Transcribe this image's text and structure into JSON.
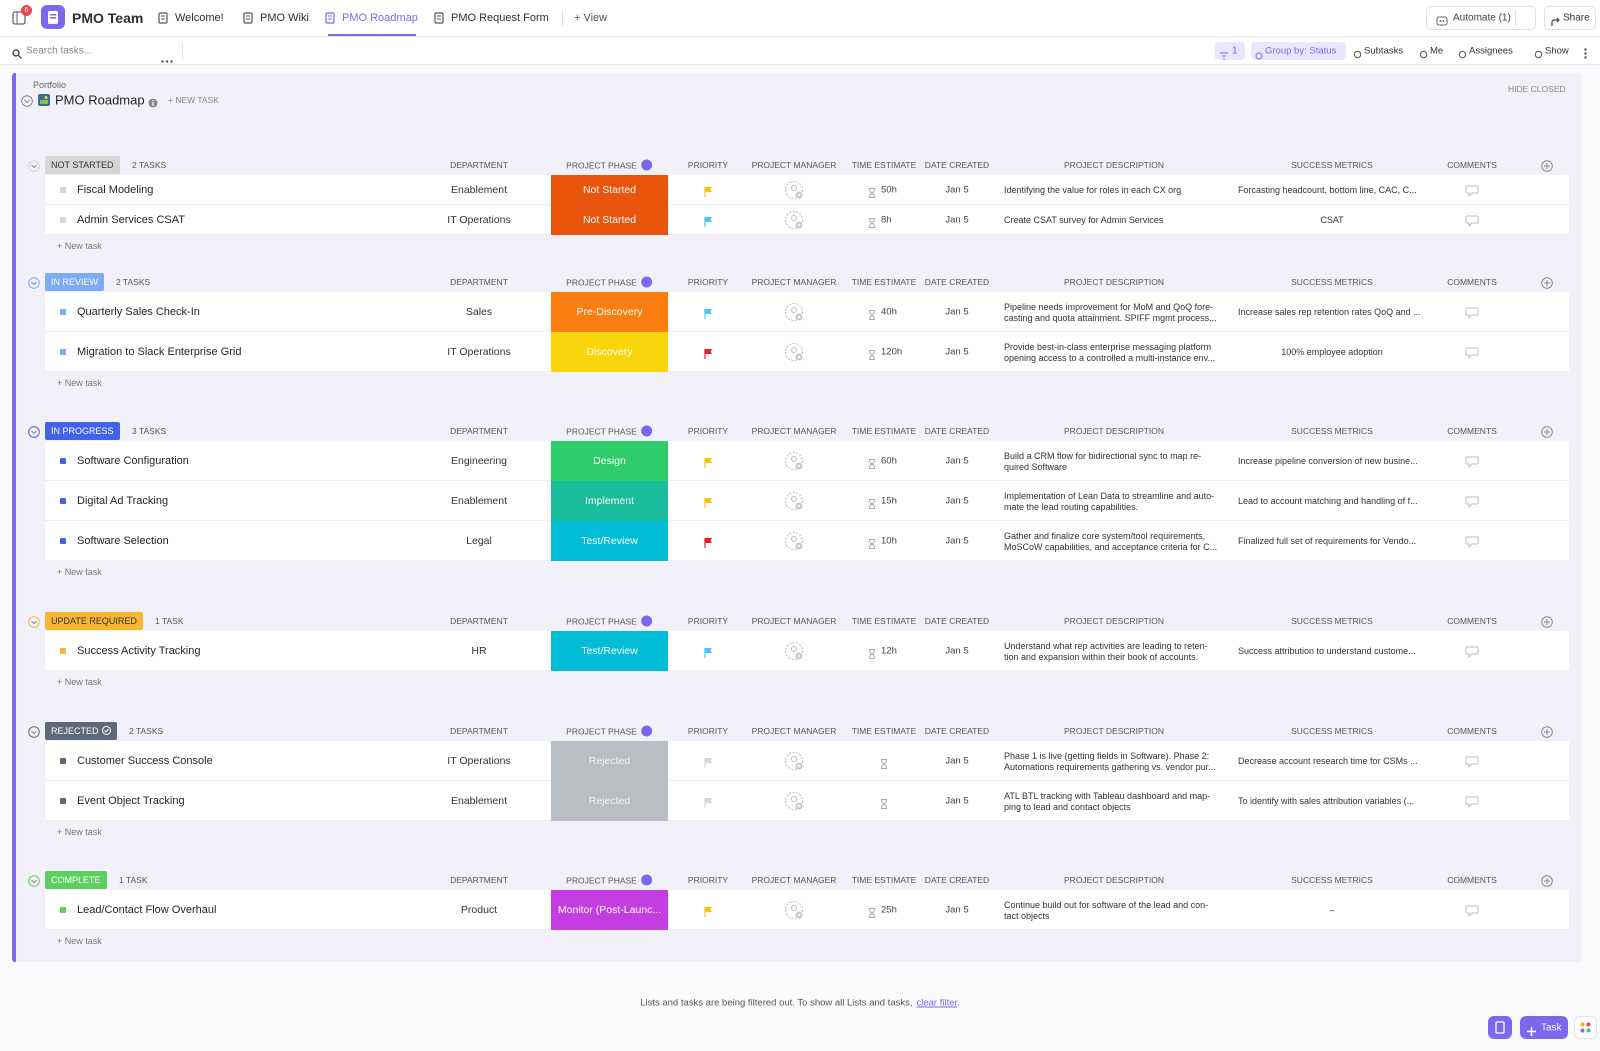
{
  "header": {
    "badge": "6",
    "workspace": "PMO Team",
    "tabs": [
      "Welcome!",
      "PMO Wiki",
      "PMO Roadmap",
      "PMO Request Form"
    ],
    "active_tab": 2,
    "add_view": "+ View",
    "automate": "Automate (1)",
    "share": "Share"
  },
  "toolbar": {
    "search": "Search tasks...",
    "filter_count": "1",
    "group_by": "Group by: Status",
    "subtasks": "Subtasks",
    "me": "Me",
    "assignees": "Assignees",
    "show": "Show"
  },
  "list": {
    "breadcrumb": "Portfolio",
    "title": "PMO Roadmap",
    "new_task": "+ NEW TASK",
    "hide_closed": "HIDE CLOSED",
    "add_task": "+ New task",
    "columns": [
      "DEPARTMENT",
      "PROJECT PHASE",
      "PRIORITY",
      "PROJECT MANAGER",
      "TIME ESTIMATE",
      "DATE CREATED",
      "PROJECT DESCRIPTION",
      "SUCCESS METRICS",
      "COMMENTS"
    ],
    "groups": [
      {
        "status": "NOT STARTED",
        "count": "2 TASKS",
        "color": "#d6d6d6",
        "text_color": "#333333",
        "tasks": [
          {
            "name": "Fiscal Modeling",
            "department": "Enablement",
            "phase": "Not Started",
            "phase_color": "#e8540c",
            "flag_color": "#f9c513",
            "time": "50h",
            "date": "Jan 5",
            "description": [
              "Identifying the value for roles in each CX org"
            ],
            "metrics": "Forcasting headcount, bottom line, CAC, C..."
          },
          {
            "name": "Admin Services CSAT",
            "department": "IT Operations",
            "phase": "Not Started",
            "phase_color": "#e8540c",
            "flag_color": "#4fc3f7",
            "time": "8h",
            "date": "Jan 5",
            "description": [
              "Create CSAT survey for Admin Services"
            ],
            "metrics": "CSAT"
          }
        ]
      },
      {
        "status": "IN REVIEW",
        "count": "2 TASKS",
        "color": "#7baaf7",
        "text_color": "#ffffff",
        "tasks": [
          {
            "name": "Quarterly Sales Check-In",
            "department": "Sales",
            "phase": "Pre-Discovery",
            "phase_color": "#fb7d0f",
            "flag_color": "#4fc3f7",
            "time": "40h",
            "date": "Jan 5",
            "description": [
              "Pipeline needs improvement for MoM and QoQ fore-",
              "casting and quota attainment.  SPIFF mgmt process..."
            ],
            "metrics": "Increase sales rep retention rates QoQ and ..."
          },
          {
            "name": "Migration to Slack Enterprise Grid",
            "department": "IT Operations",
            "phase": "Discovery",
            "phase_color": "#f7d50a",
            "flag_color": "#e62020",
            "time": "120h",
            "date": "Jan 5",
            "description": [
              "Provide best-in-class enterprise messaging platform",
              "opening access to a controlled a multi-instance env..."
            ],
            "metrics": "100% employee adoption"
          }
        ]
      },
      {
        "status": "IN PROGRESS",
        "count": "3 TASKS",
        "color": "#4262ea",
        "text_color": "#ffffff",
        "tasks": [
          {
            "name": "Software Configuration",
            "department": "Engineering",
            "phase": "Design",
            "phase_color": "#2ecc6b",
            "flag_color": "#f9c513",
            "time": "60h",
            "date": "Jan 5",
            "description": [
              "Build a CRM flow for bidirectional sync to map re-",
              "quired Software"
            ],
            "metrics": "Increase pipeline conversion of new busine..."
          },
          {
            "name": "Digital Ad Tracking",
            "department": "Enablement",
            "phase": "Implement",
            "phase_color": "#1bbc9b",
            "flag_color": "#f9c513",
            "time": "15h",
            "date": "Jan 5",
            "description": [
              "Implementation of Lean Data to streamline and auto-",
              "mate the lead routing capabilities."
            ],
            "metrics": "Lead to account matching and handling of f..."
          },
          {
            "name": "Software Selection",
            "department": "Legal",
            "phase": "Test/Review",
            "phase_color": "#00bcd4",
            "flag_color": "#e62020",
            "time": "10h",
            "date": "Jan 5",
            "description": [
              "Gather and finalize core system/tool requirements,",
              "MoSCoW capabilities, and acceptance criteria for C..."
            ],
            "metrics": "Finalized full set of requirements for Vendo..."
          }
        ]
      },
      {
        "status": "UPDATE REQUIRED",
        "count": "1 TASK",
        "color": "#f8b731",
        "text_color": "#333333",
        "tasks": [
          {
            "name": "Success Activity Tracking",
            "department": "HR",
            "phase": "Test/Review",
            "phase_color": "#00bcd4",
            "flag_color": "#4fc3f7",
            "time": "12h",
            "date": "Jan 5",
            "description": [
              " Understand what rep activities are leading to reten-",
              "tion and expansion within their book of accounts."
            ],
            "metrics": "Success attribution to understand custome..."
          }
        ]
      },
      {
        "status": "REJECTED",
        "count": "2 TASKS",
        "color": "#5d6979",
        "text_color": "#ffffff",
        "tasks": [
          {
            "name": "Customer Success Console",
            "department": "IT Operations",
            "phase": "Rejected",
            "phase_color": "#b9bec3",
            "flag_color": "#d3d6d9",
            "time": null,
            "date": "Jan 5",
            "description": [
              "Phase 1 is live (getting fields in Software).  Phase 2:",
              "Automations requirements gathering vs. vendor pur..."
            ],
            "metrics": "Decrease account research time for CSMs ..."
          },
          {
            "name": "Event Object Tracking",
            "department": "Enablement",
            "phase": "Rejected",
            "phase_color": "#b9bec3",
            "flag_color": "#d3d6d9",
            "time": null,
            "date": "Jan 5",
            "description": [
              "ATL BTL tracking with Tableau dashboard and map-",
              "ping to lead and contact objects"
            ],
            "metrics": "To identify with sales attribution variables (..."
          }
        ]
      },
      {
        "status": "COMPLETE",
        "count": "1 TASK",
        "color": "#5ccf5f",
        "text_color": "#ffffff",
        "tasks": [
          {
            "name": "Lead/Contact Flow Overhaul",
            "department": "Product",
            "phase": "Monitor (Post-Launc...",
            "phase_color": "#c33de0",
            "flag_color": "#f9c513",
            "time": "25h",
            "date": "Jan 5",
            "description": [
              "Continue build out for software of the lead and con-",
              "tact objects"
            ],
            "metrics": "–"
          }
        ]
      }
    ]
  },
  "footer": {
    "message": "Lists and tasks are being filtered out. To show all Lists and tasks,",
    "link": "clear filter",
    "end": ".",
    "task_button": "Task"
  }
}
